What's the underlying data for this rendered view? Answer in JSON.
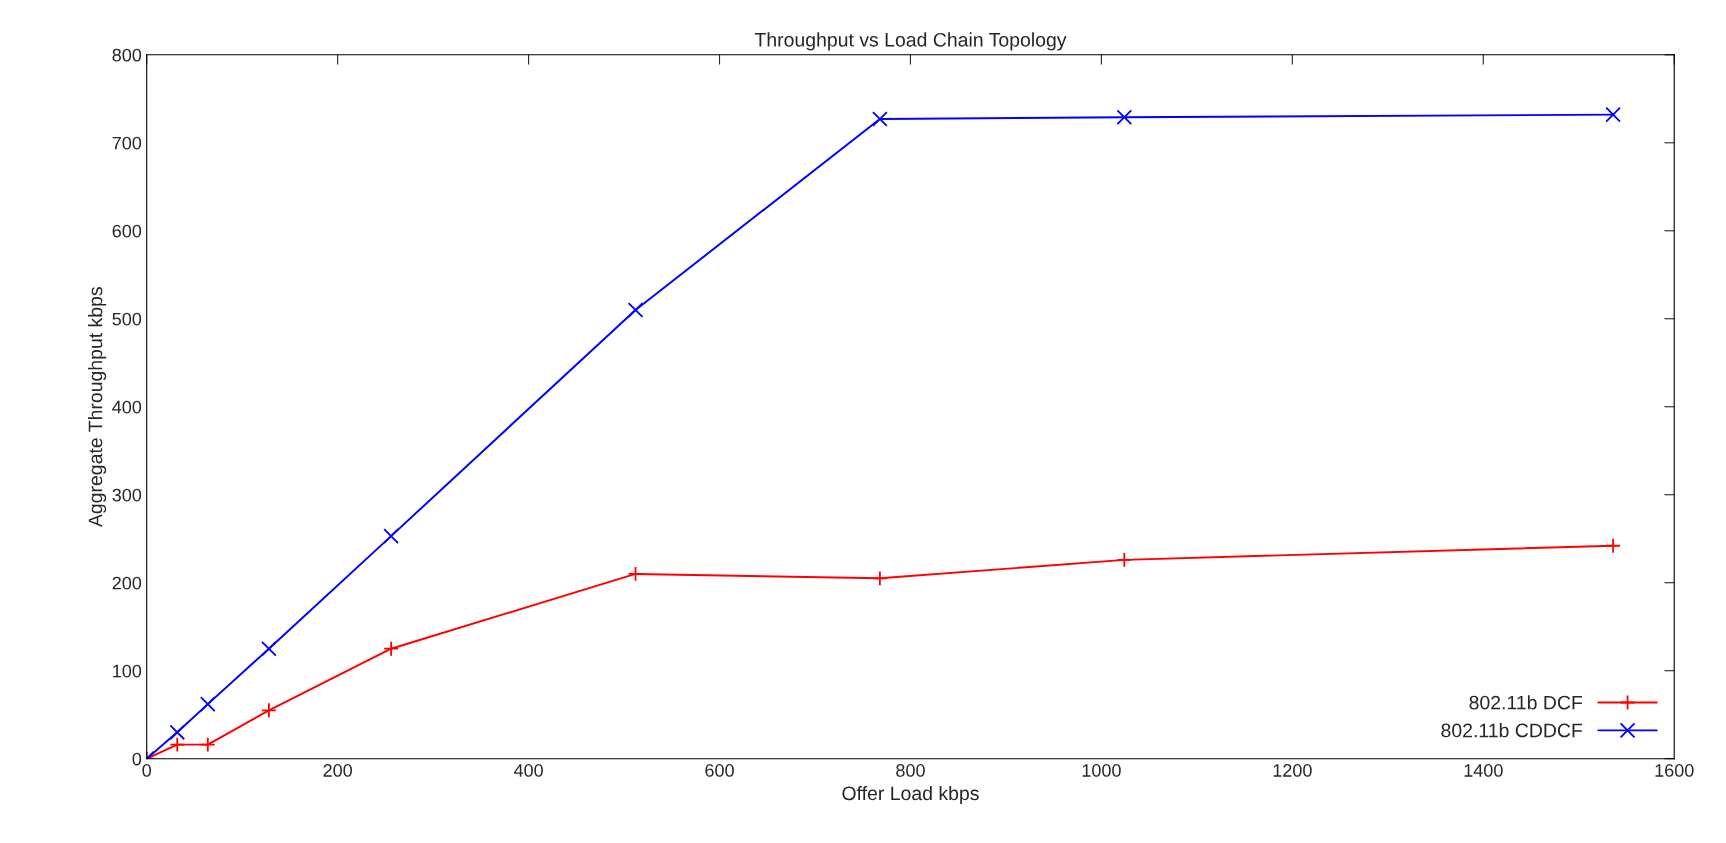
{
  "chart_data": {
    "type": "line",
    "title": "Throughput vs Load Chain Topology",
    "xlabel": "Offer Load kbps",
    "ylabel": "Aggregate Throughput kbps",
    "x": [
      0,
      32,
      64,
      128,
      256,
      512,
      768,
      1024,
      1536
    ],
    "series": [
      {
        "name": "802.11b DCF",
        "color": "#ff0000",
        "marker": "plus",
        "values": [
          0,
          16,
          16,
          55,
          125,
          210,
          205,
          226,
          242
        ]
      },
      {
        "name": "802.11b CDDCF",
        "color": "#0000ff",
        "marker": "cross",
        "values": [
          0,
          30,
          62,
          125,
          253,
          510,
          727,
          729,
          732
        ]
      }
    ],
    "xlim": [
      0,
      1600
    ],
    "xticks": [
      0,
      200,
      400,
      600,
      800,
      1000,
      1200,
      1400,
      1600
    ],
    "ylim": [
      0,
      800
    ],
    "yticks": [
      0,
      100,
      200,
      300,
      400,
      500,
      600,
      700,
      800
    ],
    "grid": false,
    "legend": "bottom right",
    "line_style": "solid"
  }
}
